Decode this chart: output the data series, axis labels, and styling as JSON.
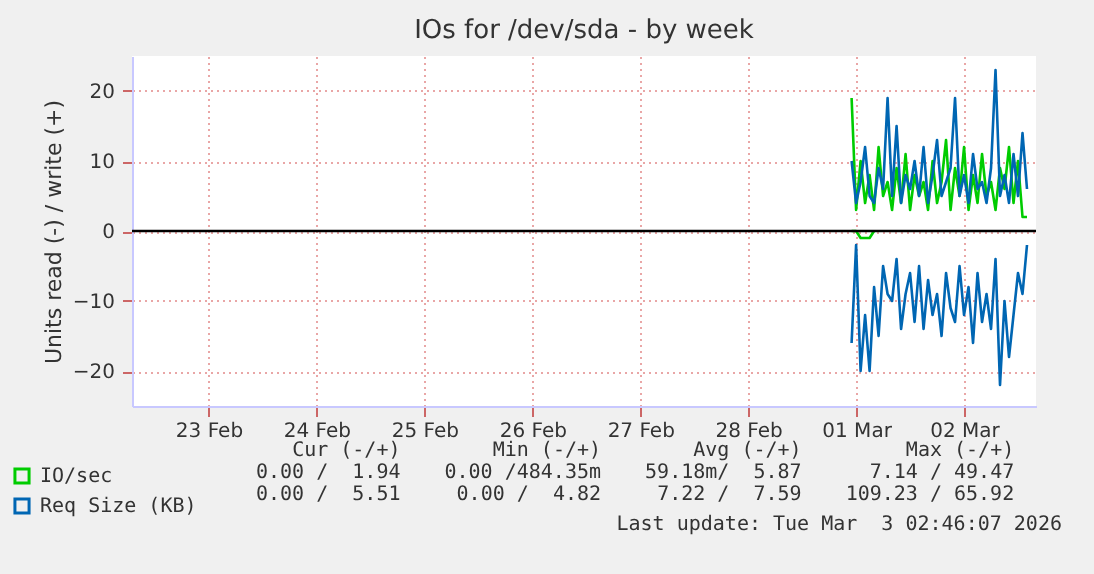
{
  "chart_data": {
    "type": "line",
    "title": "IOs for /dev/sda - by week",
    "ylabel": "Units read (-) / write (+)",
    "x": [
      "2026-03-01T11:00",
      "2026-03-01T12:00",
      "2026-03-01T13:00",
      "2026-03-01T14:00",
      "2026-03-01T15:00",
      "2026-03-01T16:00",
      "2026-03-01T17:00",
      "2026-03-01T18:00",
      "2026-03-01T19:00",
      "2026-03-01T20:00",
      "2026-03-01T21:00",
      "2026-03-01T22:00",
      "2026-03-01T23:00",
      "2026-03-02T00:00",
      "2026-03-02T01:00",
      "2026-03-02T02:00",
      "2026-03-02T03:00",
      "2026-03-02T04:00",
      "2026-03-02T05:00",
      "2026-03-02T06:00",
      "2026-03-02T07:00",
      "2026-03-02T08:00",
      "2026-03-02T09:00",
      "2026-03-02T10:00",
      "2026-03-02T11:00",
      "2026-03-02T12:00",
      "2026-03-02T13:00",
      "2026-03-02T14:00",
      "2026-03-02T15:00",
      "2026-03-02T16:00",
      "2026-03-02T17:00",
      "2026-03-02T18:00",
      "2026-03-02T19:00",
      "2026-03-02T20:00",
      "2026-03-02T21:00",
      "2026-03-02T22:00",
      "2026-03-02T23:00",
      "2026-03-03T00:00",
      "2026-03-03T01:00",
      "2026-03-03T02:00"
    ],
    "series": [
      {
        "name": "IO/sec",
        "color": "#00cc00",
        "values": [
          19,
          3,
          10,
          4,
          8,
          3,
          12,
          5,
          7,
          3,
          9,
          4,
          11,
          3,
          8,
          5,
          7,
          3,
          10,
          4,
          7,
          13,
          3,
          9,
          5,
          12,
          3,
          8,
          4,
          11,
          5,
          7,
          3,
          9,
          6,
          12,
          4,
          10,
          2,
          2
        ]
      },
      {
        "color": "#00cc00",
        "values": [
          0,
          0,
          -1,
          -1,
          -1,
          0,
          null,
          null,
          null,
          null,
          null,
          null,
          null,
          null,
          null,
          null,
          null,
          null,
          null,
          null,
          null,
          null,
          null,
          null,
          null,
          null,
          null,
          null,
          null,
          null,
          null,
          null,
          null,
          null,
          null,
          null,
          null,
          null,
          null,
          null
        ]
      },
      {
        "name": "Req Size (KB)",
        "color": "#0066b3",
        "values": [
          10,
          4,
          7,
          12,
          5,
          4,
          9,
          6,
          19,
          5,
          15,
          4,
          8,
          6,
          10,
          5,
          12,
          4,
          8,
          13,
          5,
          7,
          9,
          19,
          5,
          8,
          4,
          11,
          6,
          7,
          4,
          9,
          23,
          5,
          8,
          4,
          11,
          5,
          14,
          6
        ]
      },
      {
        "color": "#0066b3",
        "values": [
          -16,
          -2,
          -20,
          -12,
          -20,
          -8,
          -15,
          -5,
          -9,
          -10,
          -4,
          -14,
          -9,
          -6,
          -13,
          -5,
          -14,
          -7,
          -12,
          -9,
          -15,
          -6,
          -11,
          -13,
          -5,
          -12,
          -8,
          -16,
          -6,
          -13,
          -9,
          -14,
          -4,
          -22,
          -10,
          -18,
          -12,
          -6,
          -9,
          -2
        ]
      }
    ],
    "xlim": [
      "2026-02-22T19:00",
      "2026-03-03T04:00"
    ],
    "xticks": [
      {
        "value": "2026-02-23T12:00",
        "label": "23 Feb"
      },
      {
        "value": "2026-02-24T12:00",
        "label": "24 Feb"
      },
      {
        "value": "2026-02-25T12:00",
        "label": "25 Feb"
      },
      {
        "value": "2026-02-26T12:00",
        "label": "26 Feb"
      },
      {
        "value": "2026-02-27T12:00",
        "label": "27 Feb"
      },
      {
        "value": "2026-02-28T12:00",
        "label": "28 Feb"
      },
      {
        "value": "2026-03-01T12:00",
        "label": "01 Mar"
      },
      {
        "value": "2026-03-02T12:00",
        "label": "02 Mar"
      }
    ],
    "ylim": [
      -25,
      25
    ],
    "yticks": [
      -20,
      -10,
      0,
      10,
      20
    ],
    "ref_lines": [
      {
        "axis": "y",
        "value": 0,
        "color": "#000000"
      }
    ],
    "grid": true,
    "legend": "bottom",
    "marker": "none",
    "annotations": [
      "Cur (-/+)",
      "Min (-/+)",
      "Avg (-/+)",
      "Max (-/+)",
      "0.00 /  1.94",
      "0.00 /484.35m",
      "59.18m/  5.87",
      "7.14 / 49.47",
      "0.00 /  5.51",
      "0.00 /  4.82",
      "7.22 /  7.59",
      "109.23 / 65.92",
      "Last update: Tue Mar  3 02:46:07 2026"
    ]
  }
}
